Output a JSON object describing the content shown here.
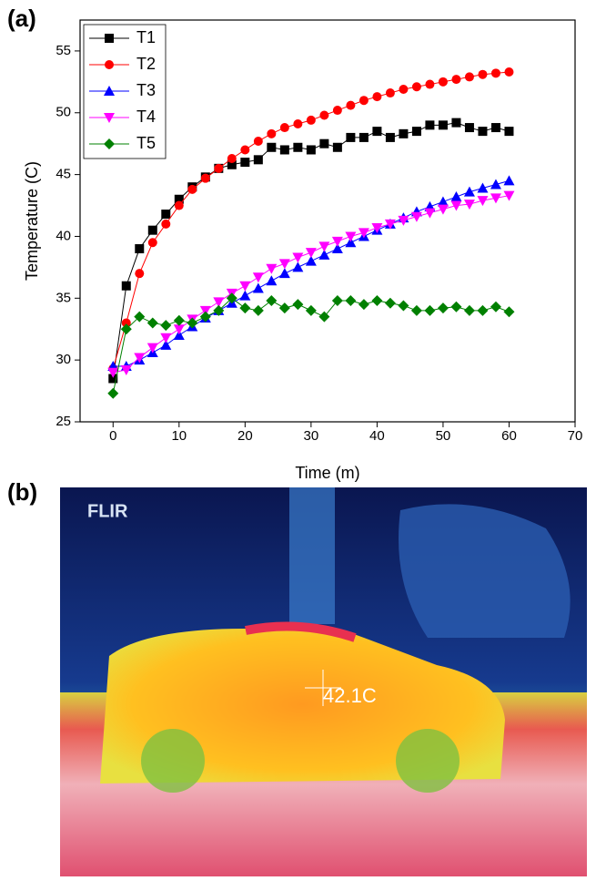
{
  "labels": {
    "a": "(a)",
    "b": "(b)"
  },
  "chart_data": {
    "type": "line",
    "xlabel": "Time (m)",
    "ylabel": "Temperature (C)",
    "x": [
      0,
      2,
      4,
      6,
      8,
      10,
      12,
      14,
      16,
      18,
      20,
      22,
      24,
      26,
      28,
      30,
      32,
      34,
      36,
      38,
      40,
      42,
      44,
      46,
      48,
      50,
      52,
      54,
      56,
      58,
      60
    ],
    "series": [
      {
        "name": "T1",
        "color": "#000000",
        "marker": "square",
        "values": [
          28.5,
          36,
          39,
          40.5,
          41.8,
          43,
          44,
          44.8,
          45.5,
          45.8,
          46,
          46.2,
          47.2,
          47,
          47.2,
          47,
          47.5,
          47.2,
          48,
          48,
          48.5,
          48,
          48.3,
          48.5,
          49,
          49,
          49.2,
          48.8,
          48.5,
          48.8,
          48.5
        ]
      },
      {
        "name": "T2",
        "color": "#ff0000",
        "marker": "circle",
        "values": [
          29.3,
          33,
          37,
          39.5,
          41,
          42.5,
          43.8,
          44.7,
          45.5,
          46.3,
          47,
          47.7,
          48.3,
          48.8,
          49.1,
          49.4,
          49.8,
          50.2,
          50.6,
          51,
          51.3,
          51.6,
          51.9,
          52.1,
          52.3,
          52.5,
          52.7,
          52.9,
          53.1,
          53.2,
          53.3
        ]
      },
      {
        "name": "T3",
        "color": "#0000ff",
        "marker": "triangle-up",
        "values": [
          29.5,
          29.5,
          30,
          30.6,
          31.2,
          32,
          32.7,
          33.4,
          34,
          34.6,
          35.2,
          35.8,
          36.4,
          37,
          37.5,
          38,
          38.5,
          39,
          39.5,
          40,
          40.5,
          41,
          41.5,
          42,
          42.4,
          42.8,
          43.2,
          43.6,
          43.9,
          44.2,
          44.5
        ]
      },
      {
        "name": "T4",
        "color": "#ff00ff",
        "marker": "triangle-down",
        "values": [
          29,
          29.2,
          30.2,
          31,
          31.8,
          32.5,
          33.3,
          34,
          34.7,
          35.4,
          36,
          36.7,
          37.4,
          37.8,
          38.3,
          38.7,
          39.2,
          39.6,
          40,
          40.3,
          40.7,
          41,
          41.3,
          41.6,
          41.9,
          42.2,
          42.5,
          42.6,
          42.9,
          43.1,
          43.3
        ]
      },
      {
        "name": "T5",
        "color": "#008000",
        "marker": "diamond",
        "values": [
          27.3,
          32.5,
          33.5,
          33,
          32.8,
          33.2,
          33,
          33.5,
          34,
          35,
          34.2,
          34,
          34.8,
          34.2,
          34.5,
          34,
          33.5,
          34.8,
          34.8,
          34.5,
          34.8,
          34.6,
          34.4,
          34,
          34,
          34.2,
          34.3,
          34,
          34,
          34.3,
          33.9
        ]
      }
    ],
    "xlim": [
      -5,
      70
    ],
    "xticks": [
      0,
      10,
      20,
      30,
      40,
      50,
      60,
      70
    ],
    "ylim": [
      25,
      57.5
    ],
    "yticks": [
      25,
      30,
      35,
      40,
      45,
      50,
      55
    ],
    "legend": "upper-left"
  },
  "thermal_image": {
    "logo": "FLIR",
    "readout": "42.1C"
  }
}
